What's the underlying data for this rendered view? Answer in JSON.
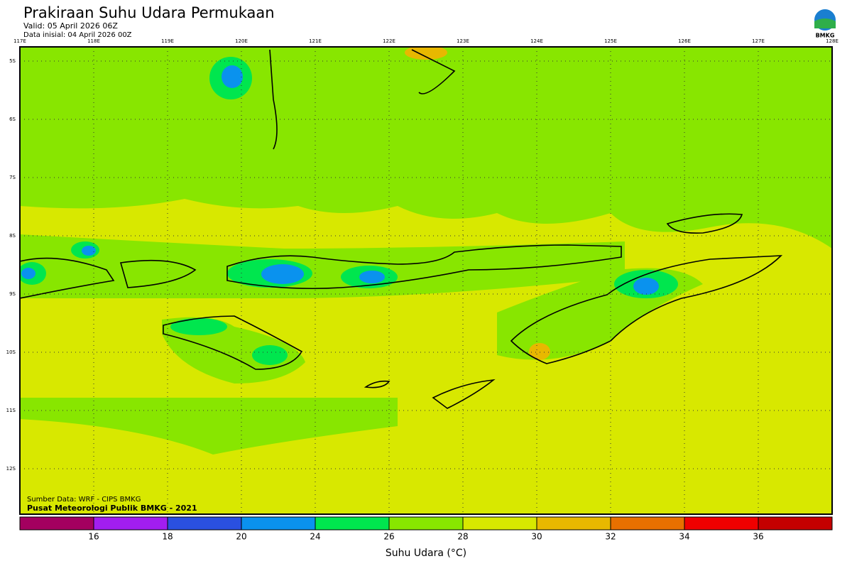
{
  "header": {
    "title": "Prakiraan Suhu Udara Permukaan",
    "valid": "Valid: 05 April 2026 06Z",
    "init": "Data inisial: 04 April 2026 00Z",
    "logo": "BMKG"
  },
  "map": {
    "lon_labels": [
      "117E",
      "118E",
      "119E",
      "120E",
      "121E",
      "122E",
      "123E",
      "124E",
      "125E",
      "126E",
      "127E",
      "128E"
    ],
    "lat_labels": [
      "5S",
      "6S",
      "7S",
      "8S",
      "9S",
      "10S",
      "11S",
      "12S"
    ],
    "source": "Sumber Data: WRF - CIPS BMKG",
    "credit": "Pusat Meteorologi Publik BMKG - 2021"
  },
  "colorbar": {
    "colors": [
      "#a3005f",
      "#a21ef0",
      "#2a50e0",
      "#0a92ee",
      "#00e64e",
      "#88e600",
      "#d8e800",
      "#e8b800",
      "#e87000",
      "#f00000",
      "#c40000"
    ],
    "ticks": [
      16,
      18,
      20,
      24,
      26,
      28,
      30,
      32,
      34,
      36
    ],
    "label": "Suhu Udara (°C)"
  }
}
